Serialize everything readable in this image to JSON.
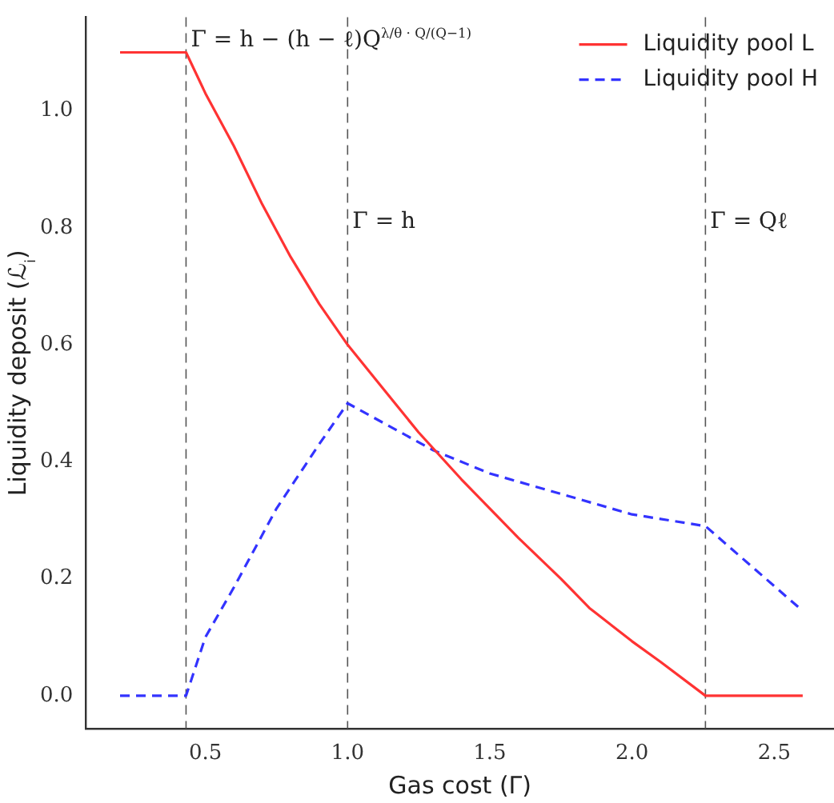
{
  "chart_data": {
    "type": "line",
    "xlabel": "Gas cost (Γ)",
    "ylabel": "Liquidity deposit (ℒ$_{i}$)",
    "xlim": [
      0.08,
      2.71
    ],
    "ylim": [
      -0.056,
      1.16
    ],
    "xticks": [
      0.5,
      {
        "value": 1.0,
        "label": "1.0"
      },
      1.5,
      {
        "value": 2.0,
        "label": "2.0"
      },
      2.5
    ],
    "yticks": [
      {
        "value": 0,
        "label": "0.0"
      },
      0.2,
      0.4,
      0.6,
      0.8,
      {
        "value": 1.0,
        "label": "1.0"
      }
    ],
    "grid": false,
    "legend": "top right",
    "marker": "none",
    "series": [
      {
        "name": "Liquidity pool L",
        "color": "#ff3333",
        "line_style": "solid",
        "x": [
          0.2,
          0.432,
          0.5,
          0.6,
          0.7,
          0.8,
          0.9,
          1.0,
          1.1,
          1.25,
          1.4,
          1.5,
          1.6,
          1.75,
          1.85,
          2.0,
          2.1,
          2.258,
          2.6
        ],
        "values": [
          1.1,
          1.1,
          1.03,
          0.94,
          0.84,
          0.75,
          0.67,
          0.6,
          0.54,
          0.45,
          0.37,
          0.32,
          0.27,
          0.2,
          0.15,
          0.093,
          0.058,
          0,
          0
        ]
      },
      {
        "name": "Liquidity pool H",
        "color": "#3333ff",
        "line_style": "dashed",
        "x": [
          0.2,
          0.432,
          0.5,
          0.6,
          0.75,
          0.9,
          1.0,
          1.3,
          1.5,
          1.75,
          2.0,
          2.258,
          2.6
        ],
        "values": [
          0,
          0,
          0.1,
          0.185,
          0.32,
          0.43,
          0.5,
          0.42,
          0.38,
          0.345,
          0.31,
          0.29,
          0.145
        ]
      }
    ],
    "ref_lines": [
      {
        "axis": "x",
        "value": 0.432,
        "color": "#555555",
        "line_style": "dashed"
      },
      {
        "axis": "x",
        "value": 1.0,
        "color": "#555555",
        "line_style": "dashed"
      },
      {
        "axis": "x",
        "value": 2.258,
        "color": "#555555",
        "line_style": "dashed"
      }
    ],
    "annotations": [
      {
        "text": "Γ = h − (h − ℓ)Q$^{λ/θ · Q/(Q−1)}$",
        "x": 0.432,
        "y": 1.11
      },
      {
        "text": "Γ = h",
        "x": 1.0,
        "y": 0.8
      },
      {
        "text": "Γ = Qℓ",
        "x": 2.258,
        "y": 0.8
      }
    ]
  }
}
